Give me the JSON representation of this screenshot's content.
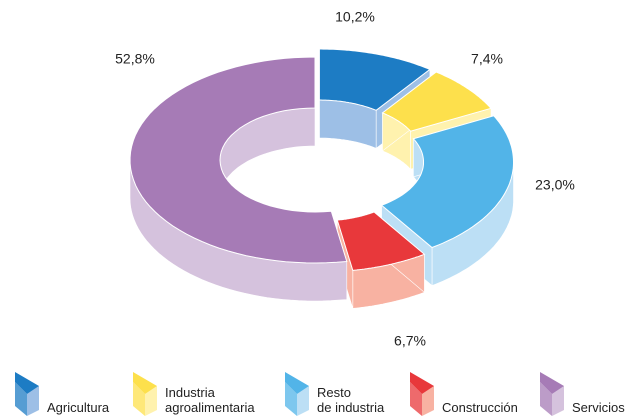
{
  "chart_data": {
    "type": "donut3d",
    "categories": [
      "Agricultura",
      "Industria\nagroalimentaria",
      "Resto\nde industria",
      "Construcción",
      "Servicios"
    ],
    "values": [
      10.2,
      7.4,
      23.0,
      6.7,
      52.8
    ],
    "value_labels": [
      "10,2%",
      "7,4%",
      "23,0%",
      "6,7%",
      "52,8%"
    ],
    "colors": [
      "#1d7cc4",
      "#fde04c",
      "#52b4e8",
      "#e8383b",
      "#a67bb6"
    ],
    "side_colors": [
      "#9dbfe6",
      "#fff2ae",
      "#bcdff5",
      "#f8b2a2",
      "#d5c2dd"
    ],
    "legend": "bottom"
  }
}
